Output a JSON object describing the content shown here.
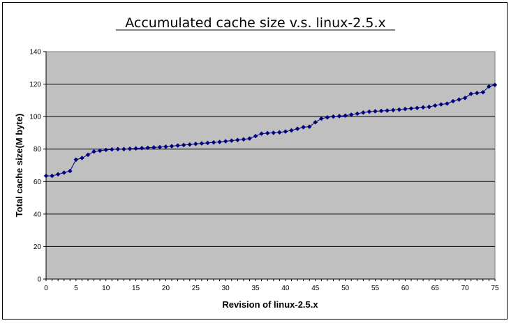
{
  "chart_data": {
    "type": "line",
    "title": "Accumulated cache size v.s. linux-2.5.x",
    "xlabel": "Revision of linux-2.5.x",
    "ylabel": "Total cache size(M byte)",
    "xlim": [
      0,
      75
    ],
    "ylim": [
      0,
      140
    ],
    "x_ticks": [
      0,
      5,
      10,
      15,
      20,
      25,
      30,
      35,
      40,
      45,
      50,
      55,
      60,
      65,
      70,
      75
    ],
    "y_ticks": [
      0,
      20,
      40,
      60,
      80,
      100,
      120,
      140
    ],
    "grid": "horizontal",
    "plot_background": "#c0c0c0",
    "series": [
      {
        "color": "#000080",
        "marker": "diamond",
        "x": [
          0,
          1,
          2,
          3,
          4,
          5,
          6,
          7,
          8,
          9,
          10,
          11,
          12,
          13,
          14,
          15,
          16,
          17,
          18,
          19,
          20,
          21,
          22,
          23,
          24,
          25,
          26,
          27,
          28,
          29,
          30,
          31,
          32,
          33,
          34,
          35,
          36,
          37,
          38,
          39,
          40,
          41,
          42,
          43,
          44,
          45,
          46,
          47,
          48,
          49,
          50,
          51,
          52,
          53,
          54,
          55,
          56,
          57,
          58,
          59,
          60,
          61,
          62,
          63,
          64,
          65,
          66,
          67,
          68,
          69,
          70,
          71,
          72,
          73,
          74,
          75
        ],
        "y": [
          63.5,
          63.5,
          64.5,
          65.5,
          66.5,
          73.5,
          74.5,
          76.5,
          78.5,
          79,
          79.5,
          79.8,
          80,
          80,
          80.2,
          80.4,
          80.6,
          80.8,
          81,
          81.2,
          81.5,
          81.8,
          82.2,
          82.5,
          82.8,
          83.2,
          83.5,
          83.8,
          84.1,
          84.4,
          84.8,
          85.2,
          85.6,
          86,
          86.5,
          88,
          89.5,
          89.8,
          90,
          90.3,
          90.8,
          91.5,
          92.5,
          93.5,
          93.8,
          96.5,
          98.8,
          99.5,
          100,
          100.3,
          100.6,
          101.2,
          101.8,
          102.5,
          103,
          103.3,
          103.5,
          103.7,
          104,
          104.3,
          104.7,
          105,
          105.3,
          105.7,
          106,
          106.8,
          107.5,
          108,
          109.5,
          110.5,
          111.5,
          114,
          114.5,
          115,
          118.5,
          119.5
        ]
      }
    ]
  }
}
